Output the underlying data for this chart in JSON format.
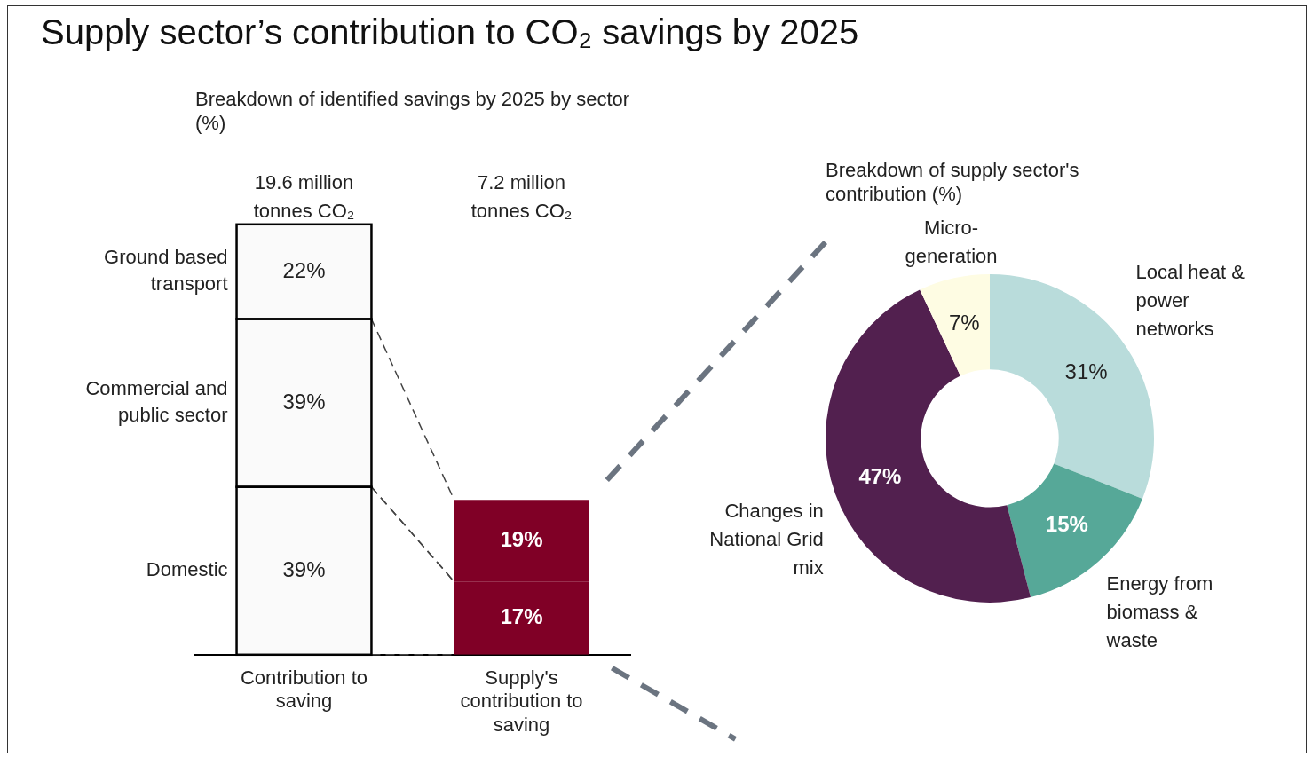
{
  "chart_data": [
    {
      "type": "bar",
      "title": "Supply sector’s contribution to CO₂ savings by 2025",
      "subtitle": "Breakdown of identified savings by 2025 by sector (%)",
      "categories": [
        "Contribution to saving",
        "Supply's contribution to saving"
      ],
      "stacked": true,
      "series": [
        {
          "name": "Domestic",
          "colors": [
            "#fafafa",
            "#800026"
          ],
          "values": [
            39,
            17
          ],
          "value_labels": [
            "39%",
            "17%"
          ]
        },
        {
          "name": "Commercial and public sector",
          "colors": [
            "#fafafa",
            "#800026"
          ],
          "values": [
            39,
            19
          ],
          "value_labels": [
            "39%",
            "19%"
          ]
        },
        {
          "name": "Ground based transport",
          "color": "#fafafa",
          "values": [
            22,
            null
          ],
          "value_labels": [
            "22%",
            null
          ]
        }
      ],
      "annotations": [
        "19.6 million tonnes CO₂",
        "7.2 million tonnes CO₂"
      ]
    },
    {
      "type": "donut",
      "subtitle": "Breakdown of supply sector's contribution (%)",
      "categories": [
        "Local heat & power networks",
        "Energy from biomass & waste",
        "Changes in National Grid mix",
        "Micro-generation"
      ],
      "values": [
        31,
        15,
        47,
        7
      ],
      "colors": [
        "#b9dcdb",
        "#56a898",
        "#52204f",
        "#fefce3"
      ],
      "value_labels": [
        "31%",
        "15%",
        "47%",
        "7%"
      ]
    }
  ]
}
